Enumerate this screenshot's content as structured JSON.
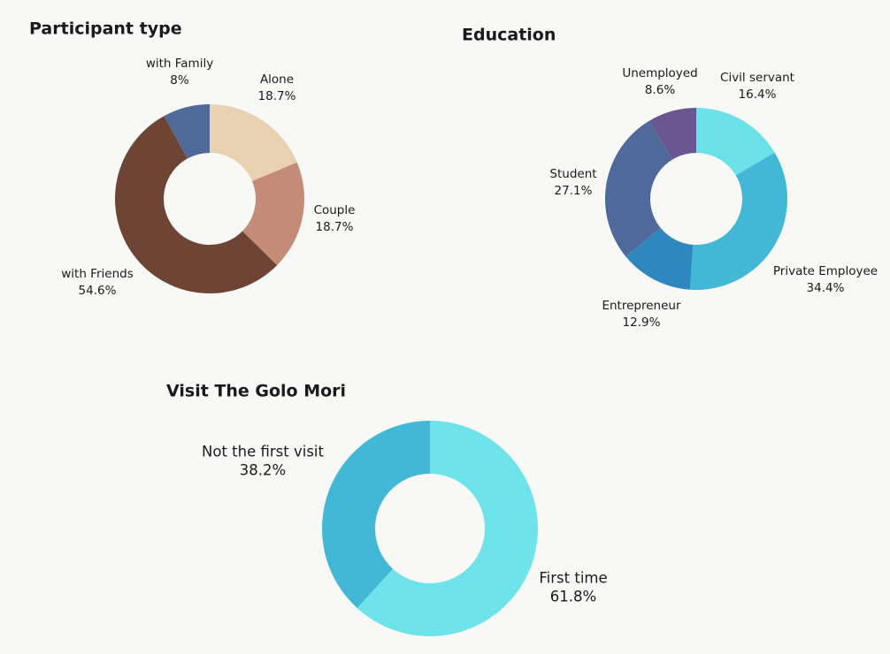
{
  "chart_data": [
    {
      "type": "pie",
      "donut": true,
      "title": "Participant type",
      "categories": [
        "Alone",
        "Couple",
        "with Friends",
        "with Family"
      ],
      "values": [
        18.7,
        18.7,
        54.6,
        8
      ],
      "value_labels": [
        "18.7%",
        "18.7%",
        "54.6%",
        "8%"
      ],
      "colors": [
        "#e8d1b1",
        "#c48b77",
        "#6e4535",
        "#4f6a98"
      ]
    },
    {
      "type": "pie",
      "donut": true,
      "title": "Education",
      "categories": [
        "Civil servant",
        "Private Employee",
        "Entrepreneur",
        "Student",
        "Unemployed"
      ],
      "values": [
        16.4,
        34.4,
        12.9,
        27.1,
        8.6
      ],
      "value_labels": [
        "16.4%",
        "34.4%",
        "12.9%",
        "27.1%",
        "8.6%"
      ],
      "colors": [
        "#6ae2e8",
        "#42b7d6",
        "#2e88be",
        "#4f6a9a",
        "#6a5791"
      ]
    },
    {
      "type": "pie",
      "donut": true,
      "title": "Visit The Golo Mori",
      "categories": [
        "First time",
        "Not the first visit"
      ],
      "values": [
        61.8,
        38.2
      ],
      "value_labels": [
        "61.8%",
        "38.2%"
      ],
      "colors": [
        "#6ee3ea",
        "#42b8d6"
      ]
    }
  ]
}
